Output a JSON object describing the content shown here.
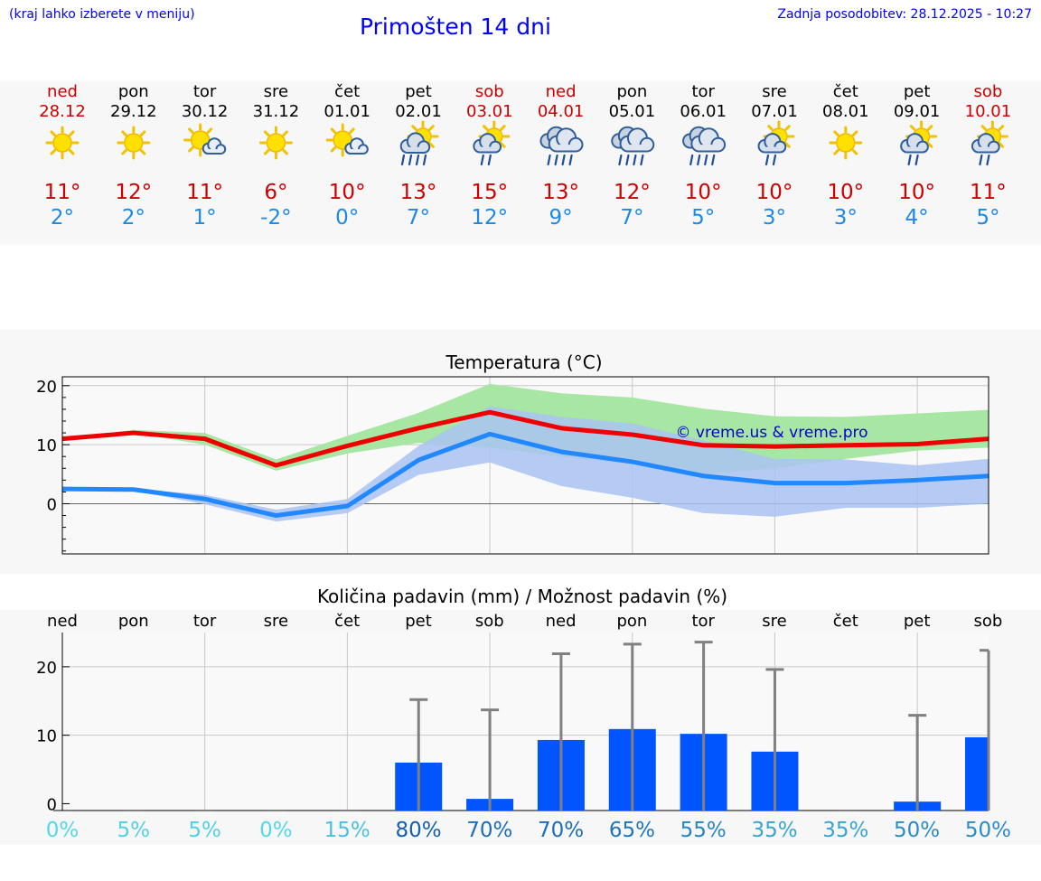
{
  "header": {
    "menu_hint": "(kraj lahko izberete v meniju)",
    "title": "Primošten 14 dni",
    "last_update": "Zadnja posodobitev: 28.12.2025 - 10:27"
  },
  "days": [
    {
      "name": "ned",
      "date": "28.12",
      "weekend": true,
      "icon": "sun-icon",
      "tmax": "11°",
      "tmin": "2°"
    },
    {
      "name": "pon",
      "date": "29.12",
      "weekend": false,
      "icon": "sun-icon",
      "tmax": "12°",
      "tmin": "2°"
    },
    {
      "name": "tor",
      "date": "30.12",
      "weekend": false,
      "icon": "sun-cloud-icon",
      "tmax": "11°",
      "tmin": "1°"
    },
    {
      "name": "sre",
      "date": "31.12",
      "weekend": false,
      "icon": "sun-icon",
      "tmax": "6°",
      "tmin": "-2°"
    },
    {
      "name": "čet",
      "date": "01.01",
      "weekend": false,
      "icon": "sun-cloud-icon",
      "tmax": "10°",
      "tmin": "0°"
    },
    {
      "name": "pet",
      "date": "02.01",
      "weekend": false,
      "icon": "sun-cloud-heavy-rain-icon",
      "tmax": "13°",
      "tmin": "7°"
    },
    {
      "name": "sob",
      "date": "03.01",
      "weekend": true,
      "icon": "sun-cloud-rain-icon",
      "tmax": "15°",
      "tmin": "12°"
    },
    {
      "name": "ned",
      "date": "04.01",
      "weekend": true,
      "icon": "cloud-heavy-rain-icon",
      "tmax": "13°",
      "tmin": "9°"
    },
    {
      "name": "pon",
      "date": "05.01",
      "weekend": false,
      "icon": "cloud-heavy-rain-icon",
      "tmax": "12°",
      "tmin": "7°"
    },
    {
      "name": "tor",
      "date": "06.01",
      "weekend": false,
      "icon": "cloud-heavy-rain-icon",
      "tmax": "10°",
      "tmin": "5°"
    },
    {
      "name": "sre",
      "date": "07.01",
      "weekend": false,
      "icon": "sun-cloud-rain-icon",
      "tmax": "10°",
      "tmin": "3°"
    },
    {
      "name": "čet",
      "date": "08.01",
      "weekend": false,
      "icon": "sun-icon",
      "tmax": "10°",
      "tmin": "3°"
    },
    {
      "name": "pet",
      "date": "09.01",
      "weekend": false,
      "icon": "sun-cloud-rain-icon",
      "tmax": "10°",
      "tmin": "4°"
    },
    {
      "name": "sob",
      "date": "10.01",
      "weekend": true,
      "icon": "sun-cloud-rain-icon",
      "tmax": "11°",
      "tmin": "5°"
    }
  ],
  "colors": {
    "weekend": "#cc0000",
    "weekday": "#000000",
    "tmax": "#cc0000",
    "tmin": "#1e88e5",
    "max_line": "#ee0000",
    "min_line": "#2288ff",
    "max_band": "#a8e6a3",
    "min_band": "#a9c3f2",
    "bar": "#0055ff",
    "whisker": "#808080",
    "watermark": "#0000cc"
  },
  "chart_data": [
    {
      "type": "line",
      "title": "Temperatura (°C)",
      "ylim": [
        -8.5,
        21.5
      ],
      "yticks": [
        0,
        10,
        20
      ],
      "x": [
        0,
        1,
        2,
        3,
        4,
        5,
        6,
        7,
        8,
        9,
        10,
        11,
        12,
        13
      ],
      "series": [
        {
          "name": "max",
          "values": [
            11,
            12,
            11,
            6.5,
            9.8,
            12.8,
            15.5,
            12.8,
            11.7,
            9.9,
            9.7,
            9.9,
            10.1,
            11
          ]
        },
        {
          "name": "min",
          "values": [
            2.5,
            2.4,
            0.8,
            -2,
            -0.4,
            7.4,
            11.8,
            8.8,
            7.1,
            4.7,
            3.5,
            3.5,
            4,
            4.7
          ]
        },
        {
          "name": "max_range",
          "low": [
            11,
            12,
            10,
            5.6,
            8.5,
            10.3,
            9.5,
            8,
            6.7,
            5,
            6,
            7.6,
            9,
            9.5
          ],
          "high": [
            11,
            12.5,
            12,
            7.5,
            11.5,
            15.4,
            20.3,
            18.7,
            18,
            16.1,
            14.8,
            14.7,
            15.3,
            15.9
          ]
        },
        {
          "name": "min_range",
          "low": [
            2.5,
            2.2,
            -0.1,
            -3,
            -1.6,
            4.9,
            7,
            3,
            1,
            -1.6,
            -2.2,
            -0.7,
            -0.7,
            0
          ],
          "high": [
            2.5,
            2.6,
            1.5,
            -1,
            0.8,
            9.8,
            16.5,
            14.7,
            13.6,
            10.7,
            7.6,
            7.5,
            6.5,
            7.6
          ]
        }
      ],
      "annotation": "© vreme.us & vreme.pro"
    },
    {
      "type": "bar",
      "title": "Količina padavin (mm) / Možnost padavin (%)",
      "ylim": [
        -1,
        25
      ],
      "yticks": [
        0,
        10,
        20
      ],
      "categories": [
        "ned",
        "pon",
        "tor",
        "sre",
        "čet",
        "pet",
        "sob",
        "ned",
        "pon",
        "tor",
        "sre",
        "čet",
        "pet",
        "sob"
      ],
      "values": [
        0,
        0,
        0,
        0,
        0,
        6,
        0.7,
        9.3,
        10.9,
        10.2,
        7.6,
        0,
        0.3,
        9.7
      ],
      "error_high": [
        0,
        0,
        0,
        0,
        0,
        15.2,
        13.7,
        21.9,
        23.3,
        23.6,
        19.6,
        0,
        12.9,
        22.4
      ],
      "probabilities": [
        "0%",
        "5%",
        "5%",
        "0%",
        "15%",
        "80%",
        "70%",
        "70%",
        "65%",
        "55%",
        "35%",
        "35%",
        "50%",
        "50%"
      ],
      "probability_values": [
        0,
        5,
        5,
        0,
        15,
        80,
        70,
        70,
        65,
        55,
        35,
        35,
        50,
        50
      ]
    }
  ]
}
